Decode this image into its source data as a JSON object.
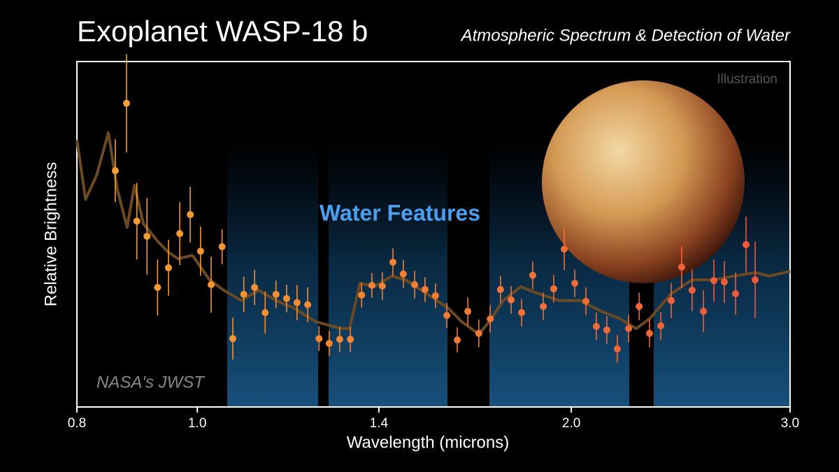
{
  "chart_data": {
    "type": "scatter",
    "title": "Exoplanet WASP-18 b",
    "subtitle": "Atmospheric Spectrum & Detection of Water",
    "annotations": {
      "illustration": "Illustration",
      "feature": "Water Features",
      "credit": "NASA's JWST"
    },
    "xlabel": "Wavelength (microns)",
    "ylabel": "Relative Brightness",
    "xscale": "log",
    "xlim": [
      0.8,
      3.0
    ],
    "xticks": [
      0.8,
      {
        "value": 1,
        "label": "1.0"
      },
      1.4,
      {
        "value": 2,
        "label": "2.0"
      },
      {
        "value": 3,
        "label": "3.0"
      }
    ],
    "ylim": [
      0,
      100
    ],
    "colors": [
      "#f5a030",
      "#f0583a"
    ],
    "x": [
      0.859,
      0.877,
      0.894,
      0.911,
      0.929,
      0.948,
      0.968,
      0.987,
      1.006,
      1.026,
      1.047,
      1.068,
      1.09,
      1.112,
      1.134,
      1.157,
      1.18,
      1.203,
      1.227,
      1.253,
      1.277,
      1.302,
      1.328,
      1.356,
      1.382,
      1.409,
      1.437,
      1.465,
      1.496,
      1.525,
      1.555,
      1.588,
      1.619,
      1.651,
      1.685,
      1.721,
      1.754,
      1.789,
      1.824,
      1.862,
      1.899,
      1.936,
      1.974,
      2.013,
      2.055,
      2.095,
      2.136,
      2.178,
      2.224,
      2.268,
      2.312,
      2.361,
      2.407,
      2.454,
      2.502,
      2.555,
      2.605,
      2.656,
      2.712,
      2.765,
      2.812
    ],
    "values": [
      68.4,
      87.9,
      53.8,
      49.4,
      34.6,
      40.3,
      50.2,
      55.7,
      45.1,
      35.4,
      46.4,
      19.8,
      32.6,
      34.6,
      27.3,
      32.6,
      31.4,
      30.2,
      29.6,
      19.8,
      18.4,
      19.6,
      19.6,
      32.4,
      35.2,
      35.0,
      41.9,
      38.5,
      35.4,
      34.0,
      32.2,
      26.5,
      19.4,
      27.7,
      21.3,
      25.5,
      34.0,
      31.0,
      27.3,
      38.1,
      29.1,
      34.2,
      45.7,
      35.8,
      30.6,
      23.3,
      22.3,
      16.8,
      22.7,
      29.1,
      21.3,
      23.5,
      30.8,
      40.5,
      33.8,
      27.7,
      36.6,
      36.2,
      32.8,
      47.0,
      36.8
    ],
    "errors": [
      9.1,
      14.2,
      11.1,
      11.1,
      8.1,
      8.1,
      9.1,
      8.1,
      7.1,
      8.1,
      5.1,
      6.1,
      5.1,
      5.1,
      6.1,
      4.0,
      4.0,
      5.1,
      5.1,
      3.6,
      3.6,
      3.6,
      3.6,
      3.6,
      3.6,
      4.0,
      4.0,
      4.0,
      4.0,
      3.6,
      3.6,
      3.6,
      3.6,
      4.0,
      4.0,
      4.0,
      4.0,
      4.0,
      4.0,
      4.0,
      4.0,
      4.0,
      6.1,
      4.0,
      4.0,
      4.0,
      4.0,
      4.0,
      4.0,
      4.0,
      4.0,
      4.0,
      5.1,
      6.1,
      6.1,
      6.1,
      6.1,
      6.1,
      6.1,
      8.1,
      11.1
    ],
    "model": {
      "color": "#6b4a22",
      "x": [
        0.8,
        0.813,
        0.83,
        0.848,
        0.862,
        0.878,
        0.89,
        0.905,
        0.929,
        0.947,
        0.965,
        0.991,
        1.023,
        1.05,
        1.085,
        1.12,
        1.157,
        1.195,
        1.245,
        1.275,
        1.308,
        1.326,
        1.352,
        1.388,
        1.434,
        1.471,
        1.53,
        1.591,
        1.632,
        1.685,
        1.718,
        1.763,
        1.821,
        1.882,
        1.956,
        2.033,
        2.114,
        2.184,
        2.256,
        2.315,
        2.407,
        2.502,
        2.602,
        2.705,
        2.812,
        2.886,
        3.0
      ],
      "values": [
        77.3,
        60.1,
        67.2,
        79.4,
        63.2,
        52.0,
        64.2,
        53.0,
        48.0,
        44.9,
        42.9,
        43.9,
        36.8,
        33.8,
        30.8,
        33.8,
        30.8,
        28.7,
        24.7,
        23.7,
        22.7,
        22.7,
        35.8,
        34.8,
        37.9,
        36.8,
        32.8,
        28.7,
        24.7,
        21.1,
        24.7,
        30.8,
        34.8,
        32.8,
        30.8,
        30.8,
        27.7,
        25.7,
        22.7,
        25.7,
        32.8,
        36.8,
        36.8,
        37.9,
        38.9,
        37.9,
        39.3
      ]
    }
  }
}
